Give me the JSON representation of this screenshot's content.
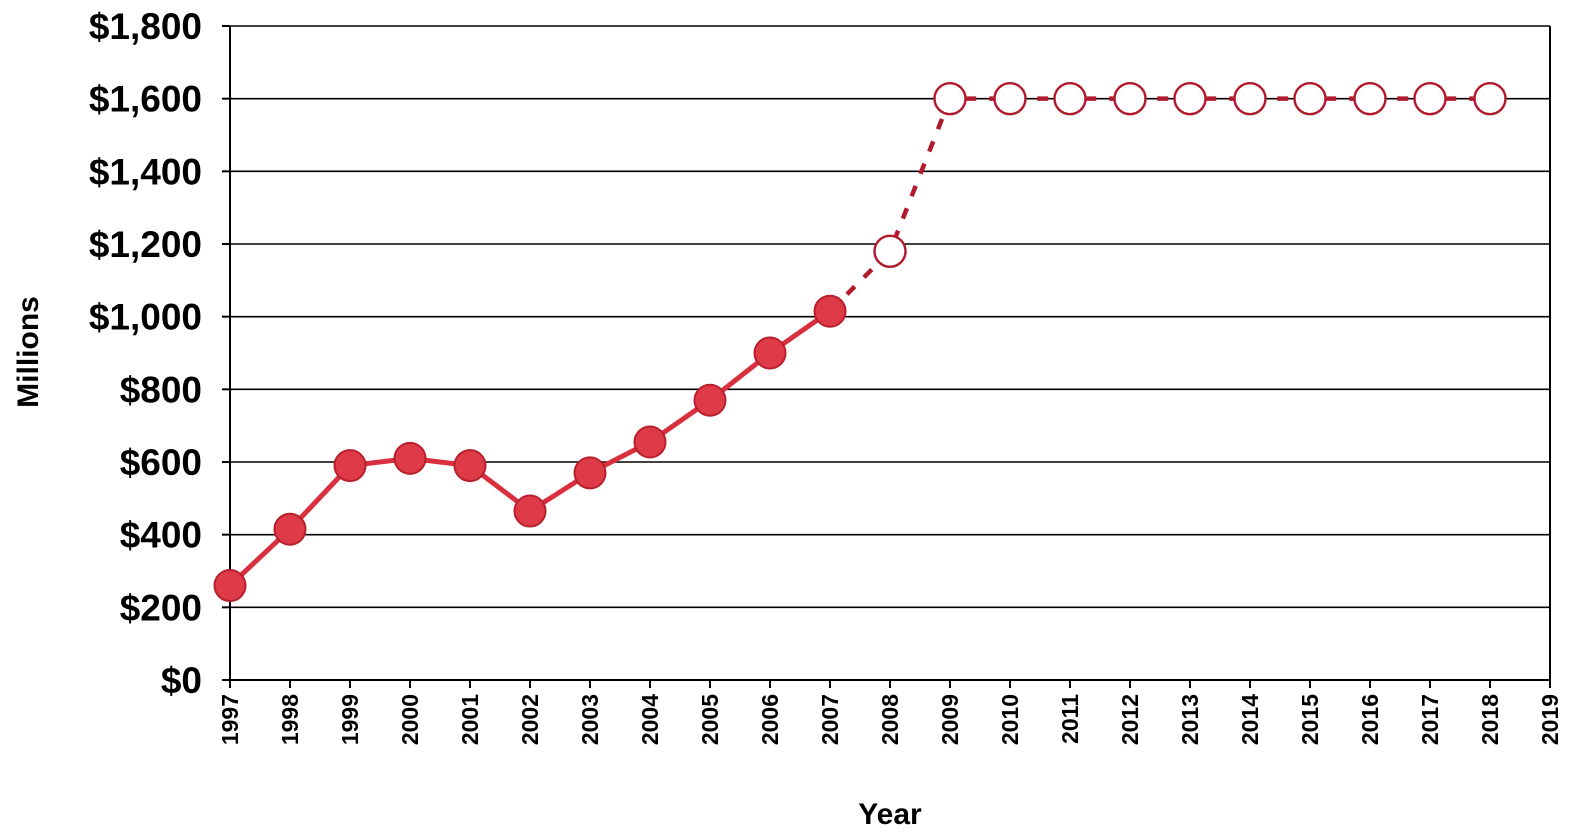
{
  "chart_data": {
    "type": "line",
    "title": "",
    "xlabel": "Year",
    "ylabel": "Millions",
    "x_tick_labels": [
      "1997",
      "1998",
      "1999",
      "2000",
      "2001",
      "2002",
      "2003",
      "2004",
      "2005",
      "2006",
      "2007",
      "2008",
      "2009",
      "2010",
      "2011",
      "2012",
      "2013",
      "2014",
      "2015",
      "2016",
      "2017",
      "2018",
      "2019"
    ],
    "y_tick_labels": [
      "$0",
      "$200",
      "$400",
      "$600",
      "$800",
      "$1,000",
      "$1,200",
      "$1,400",
      "$1,600",
      "$1,800"
    ],
    "xlim": [
      1997,
      2019
    ],
    "ylim": [
      0,
      1800
    ],
    "y_tick_step": 200,
    "grid": true,
    "legend": "none",
    "series": [
      {
        "style": "solid line, filled circle markers",
        "color": "#d9303f",
        "points": [
          {
            "x": 1997,
            "y": 260
          },
          {
            "x": 1998,
            "y": 415
          },
          {
            "x": 1999,
            "y": 590
          },
          {
            "x": 2000,
            "y": 610
          },
          {
            "x": 2001,
            "y": 590
          },
          {
            "x": 2002,
            "y": 465
          },
          {
            "x": 2003,
            "y": 570
          },
          {
            "x": 2004,
            "y": 655
          },
          {
            "x": 2005,
            "y": 770
          },
          {
            "x": 2006,
            "y": 900
          },
          {
            "x": 2007,
            "y": 1015
          }
        ]
      },
      {
        "style": "dashed line, open circle markers",
        "color": "#b01a2c",
        "points": [
          {
            "x": 2008,
            "y": 1180
          },
          {
            "x": 2009,
            "y": 1600
          },
          {
            "x": 2010,
            "y": 1600
          },
          {
            "x": 2011,
            "y": 1600
          },
          {
            "x": 2012,
            "y": 1600
          },
          {
            "x": 2013,
            "y": 1600
          },
          {
            "x": 2014,
            "y": 1600
          },
          {
            "x": 2015,
            "y": 1600
          },
          {
            "x": 2016,
            "y": 1600
          },
          {
            "x": 2017,
            "y": 1600
          },
          {
            "x": 2018,
            "y": 1600
          }
        ]
      }
    ]
  }
}
